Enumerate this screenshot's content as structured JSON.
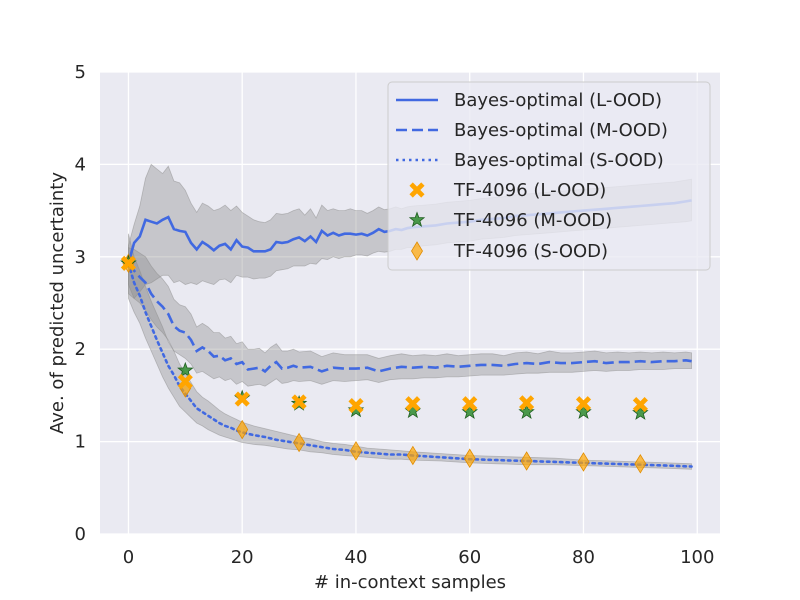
{
  "chart_data": {
    "type": "line",
    "title": "",
    "xlabel": "# in-context samples",
    "ylabel": "Ave. of predicted uncertainty",
    "xlim": [
      -5,
      104
    ],
    "ylim": [
      0,
      5
    ],
    "xticks": [
      0,
      20,
      40,
      60,
      80,
      100
    ],
    "yticks": [
      0,
      1,
      2,
      3,
      4,
      5
    ],
    "xtick_labels": [
      "0",
      "20",
      "40",
      "60",
      "80",
      "100"
    ],
    "ytick_labels": [
      "0",
      "1",
      "2",
      "3",
      "4",
      "5"
    ],
    "grid": true,
    "legend_position": "top-right",
    "colors": {
      "line": "#4169e1",
      "band": "#8c8c8c",
      "marker_orange": "#ffa500",
      "marker_green": "#2e8b2e",
      "background": "#eaeaf2",
      "grid": "#ffffff"
    },
    "series": [
      {
        "name": "Bayes-optimal (L-OOD)",
        "style": "solid",
        "x": [
          0,
          1,
          2,
          3,
          4,
          5,
          6,
          7,
          8,
          9,
          10,
          11,
          12,
          13,
          14,
          15,
          16,
          17,
          18,
          19,
          20,
          21,
          22,
          23,
          24,
          25,
          26,
          27,
          28,
          29,
          30,
          31,
          32,
          33,
          34,
          35,
          36,
          37,
          38,
          39,
          40,
          41,
          42,
          43,
          44,
          45,
          46,
          47,
          48,
          49,
          50,
          52,
          54,
          56,
          58,
          60,
          62,
          64,
          66,
          68,
          70,
          72,
          74,
          76,
          78,
          80,
          82,
          84,
          86,
          88,
          90,
          92,
          94,
          96,
          98,
          99
        ],
        "y": [
          2.93,
          3.15,
          3.22,
          3.4,
          3.38,
          3.36,
          3.4,
          3.43,
          3.3,
          3.28,
          3.27,
          3.15,
          3.08,
          3.16,
          3.12,
          3.07,
          3.12,
          3.14,
          3.08,
          3.18,
          3.11,
          3.1,
          3.06,
          3.06,
          3.06,
          3.08,
          3.16,
          3.15,
          3.16,
          3.19,
          3.21,
          3.17,
          3.22,
          3.16,
          3.28,
          3.23,
          3.26,
          3.23,
          3.25,
          3.25,
          3.24,
          3.25,
          3.23,
          3.26,
          3.3,
          3.27,
          3.28,
          3.3,
          3.29,
          3.31,
          3.32,
          3.33,
          3.34,
          3.36,
          3.37,
          3.38,
          3.4,
          3.41,
          3.42,
          3.44,
          3.45,
          3.46,
          3.47,
          3.48,
          3.49,
          3.5,
          3.51,
          3.52,
          3.53,
          3.54,
          3.55,
          3.56,
          3.57,
          3.58,
          3.6,
          3.61
        ],
        "lower": [
          2.7,
          2.55,
          2.62,
          2.7,
          2.72,
          2.76,
          2.8,
          2.8,
          2.72,
          2.74,
          2.7,
          2.72,
          2.7,
          2.74,
          2.72,
          2.7,
          2.75,
          2.76,
          2.72,
          2.8,
          2.78,
          2.78,
          2.76,
          2.77,
          2.77,
          2.79,
          2.85,
          2.86,
          2.87,
          2.9,
          2.9,
          2.9,
          2.93,
          2.92,
          2.98,
          2.97,
          3.0,
          2.98,
          3.0,
          3.0,
          3.02,
          3.02,
          3.01,
          3.04,
          3.06,
          3.05,
          3.06,
          3.08,
          3.08,
          3.1,
          3.1,
          3.12,
          3.13,
          3.15,
          3.16,
          3.17,
          3.19,
          3.2,
          3.21,
          3.23,
          3.24,
          3.25,
          3.26,
          3.27,
          3.28,
          3.29,
          3.3,
          3.31,
          3.32,
          3.33,
          3.34,
          3.35,
          3.36,
          3.37,
          3.38,
          3.39
        ],
        "upper": [
          3.12,
          3.35,
          3.55,
          3.85,
          4.0,
          3.95,
          3.9,
          3.98,
          3.82,
          3.8,
          3.72,
          3.58,
          3.48,
          3.58,
          3.55,
          3.5,
          3.52,
          3.56,
          3.5,
          3.55,
          3.48,
          3.44,
          3.4,
          3.38,
          3.37,
          3.4,
          3.47,
          3.46,
          3.47,
          3.5,
          3.52,
          3.45,
          3.52,
          3.42,
          3.56,
          3.5,
          3.52,
          3.5,
          3.5,
          3.52,
          3.5,
          3.5,
          3.47,
          3.5,
          3.54,
          3.51,
          3.52,
          3.54,
          3.52,
          3.54,
          3.55,
          3.56,
          3.57,
          3.59,
          3.6,
          3.61,
          3.63,
          3.64,
          3.65,
          3.67,
          3.68,
          3.69,
          3.7,
          3.71,
          3.72,
          3.73,
          3.74,
          3.75,
          3.76,
          3.77,
          3.78,
          3.79,
          3.8,
          3.81,
          3.83,
          3.84
        ]
      },
      {
        "name": "Bayes-optimal (M-OOD)",
        "style": "dashed",
        "x": [
          0,
          1,
          2,
          3,
          4,
          5,
          6,
          7,
          8,
          9,
          10,
          11,
          12,
          13,
          14,
          15,
          16,
          17,
          18,
          19,
          20,
          21,
          22,
          23,
          24,
          25,
          26,
          27,
          28,
          29,
          30,
          32,
          34,
          36,
          38,
          40,
          42,
          44,
          46,
          48,
          50,
          52,
          54,
          56,
          58,
          60,
          62,
          64,
          66,
          68,
          70,
          72,
          74,
          76,
          78,
          80,
          82,
          84,
          86,
          88,
          90,
          92,
          94,
          96,
          98,
          99
        ],
        "y": [
          2.93,
          2.85,
          2.78,
          2.72,
          2.6,
          2.52,
          2.46,
          2.38,
          2.25,
          2.2,
          2.18,
          2.1,
          1.98,
          2.02,
          1.98,
          1.92,
          1.93,
          1.88,
          1.9,
          1.84,
          1.86,
          1.78,
          1.79,
          1.8,
          1.76,
          1.82,
          1.86,
          1.79,
          1.8,
          1.82,
          1.8,
          1.81,
          1.76,
          1.8,
          1.79,
          1.79,
          1.8,
          1.76,
          1.79,
          1.81,
          1.8,
          1.81,
          1.8,
          1.82,
          1.81,
          1.82,
          1.83,
          1.83,
          1.82,
          1.84,
          1.85,
          1.84,
          1.86,
          1.85,
          1.85,
          1.86,
          1.87,
          1.85,
          1.86,
          1.86,
          1.87,
          1.86,
          1.87,
          1.87,
          1.88,
          1.87
        ],
        "lower": [
          2.6,
          2.55,
          2.5,
          2.42,
          2.32,
          2.24,
          2.18,
          2.1,
          1.98,
          1.94,
          1.9,
          1.84,
          1.74,
          1.76,
          1.72,
          1.68,
          1.7,
          1.66,
          1.68,
          1.62,
          1.65,
          1.6,
          1.61,
          1.62,
          1.6,
          1.64,
          1.68,
          1.63,
          1.64,
          1.66,
          1.65,
          1.66,
          1.62,
          1.66,
          1.65,
          1.66,
          1.67,
          1.64,
          1.67,
          1.68,
          1.68,
          1.69,
          1.69,
          1.7,
          1.7,
          1.71,
          1.72,
          1.72,
          1.72,
          1.73,
          1.74,
          1.74,
          1.75,
          1.75,
          1.75,
          1.76,
          1.77,
          1.76,
          1.77,
          1.77,
          1.78,
          1.78,
          1.78,
          1.79,
          1.79,
          1.79
        ],
        "upper": [
          3.1,
          3.08,
          3.04,
          3.0,
          2.9,
          2.82,
          2.76,
          2.68,
          2.54,
          2.48,
          2.46,
          2.38,
          2.24,
          2.28,
          2.24,
          2.18,
          2.18,
          2.12,
          2.14,
          2.06,
          2.08,
          2.0,
          2.0,
          2.01,
          1.96,
          2.02,
          2.06,
          1.98,
          1.98,
          2.0,
          1.97,
          1.98,
          1.92,
          1.96,
          1.94,
          1.94,
          1.94,
          1.9,
          1.93,
          1.95,
          1.93,
          1.94,
          1.93,
          1.95,
          1.93,
          1.94,
          1.95,
          1.95,
          1.93,
          1.96,
          1.97,
          1.95,
          1.98,
          1.96,
          1.96,
          1.97,
          1.98,
          1.96,
          1.97,
          1.96,
          1.97,
          1.96,
          1.97,
          1.96,
          1.97,
          1.96
        ]
      },
      {
        "name": "Bayes-optimal (S-OOD)",
        "style": "dotted",
        "x": [
          0,
          1,
          2,
          3,
          4,
          5,
          6,
          7,
          8,
          9,
          10,
          11,
          12,
          13,
          14,
          15,
          16,
          17,
          18,
          19,
          20,
          22,
          24,
          26,
          28,
          30,
          32,
          34,
          36,
          38,
          40,
          42,
          44,
          46,
          48,
          50,
          55,
          60,
          65,
          70,
          75,
          80,
          85,
          90,
          95,
          99
        ],
        "y": [
          2.93,
          2.72,
          2.58,
          2.4,
          2.25,
          2.1,
          1.96,
          1.82,
          1.72,
          1.6,
          1.52,
          1.44,
          1.36,
          1.32,
          1.28,
          1.24,
          1.2,
          1.17,
          1.15,
          1.12,
          1.1,
          1.07,
          1.05,
          1.02,
          1.0,
          0.98,
          0.96,
          0.94,
          0.92,
          0.91,
          0.89,
          0.88,
          0.87,
          0.86,
          0.86,
          0.85,
          0.83,
          0.81,
          0.8,
          0.79,
          0.78,
          0.77,
          0.76,
          0.75,
          0.74,
          0.73
        ],
        "lower": [
          2.55,
          2.4,
          2.28,
          2.12,
          1.98,
          1.84,
          1.7,
          1.58,
          1.48,
          1.38,
          1.32,
          1.26,
          1.2,
          1.17,
          1.13,
          1.1,
          1.07,
          1.05,
          1.03,
          1.01,
          0.99,
          0.97,
          0.96,
          0.94,
          0.92,
          0.91,
          0.89,
          0.88,
          0.86,
          0.85,
          0.84,
          0.83,
          0.82,
          0.81,
          0.81,
          0.8,
          0.79,
          0.77,
          0.76,
          0.75,
          0.75,
          0.74,
          0.73,
          0.72,
          0.71,
          0.7
        ],
        "upper": [
          3.25,
          3.0,
          2.85,
          2.68,
          2.52,
          2.38,
          2.24,
          2.08,
          1.98,
          1.84,
          1.74,
          1.64,
          1.54,
          1.48,
          1.44,
          1.39,
          1.34,
          1.3,
          1.27,
          1.24,
          1.21,
          1.17,
          1.14,
          1.11,
          1.08,
          1.05,
          1.03,
          1.0,
          0.98,
          0.97,
          0.95,
          0.93,
          0.92,
          0.91,
          0.9,
          0.89,
          0.87,
          0.85,
          0.84,
          0.83,
          0.82,
          0.8,
          0.79,
          0.78,
          0.77,
          0.76
        ]
      }
    ],
    "markers": [
      {
        "name": "TF-4096 (L-OOD)",
        "shape": "X",
        "x": [
          0,
          10,
          20,
          30,
          40,
          50,
          60,
          70,
          80,
          90
        ],
        "y": [
          2.93,
          1.65,
          1.46,
          1.43,
          1.39,
          1.41,
          1.41,
          1.42,
          1.41,
          1.4
        ]
      },
      {
        "name": "TF-4096 (M-OOD)",
        "shape": "star",
        "x": [
          0,
          10,
          20,
          30,
          40,
          50,
          60,
          70,
          80,
          90
        ],
        "y": [
          2.93,
          1.77,
          1.47,
          1.41,
          1.34,
          1.33,
          1.32,
          1.32,
          1.32,
          1.31
        ]
      },
      {
        "name": "TF-4096 (S-OOD)",
        "shape": "diamond",
        "x": [
          0,
          10,
          20,
          30,
          40,
          50,
          60,
          70,
          80,
          90
        ],
        "y": [
          2.93,
          1.58,
          1.13,
          0.99,
          0.9,
          0.85,
          0.82,
          0.79,
          0.78,
          0.76
        ]
      }
    ]
  }
}
